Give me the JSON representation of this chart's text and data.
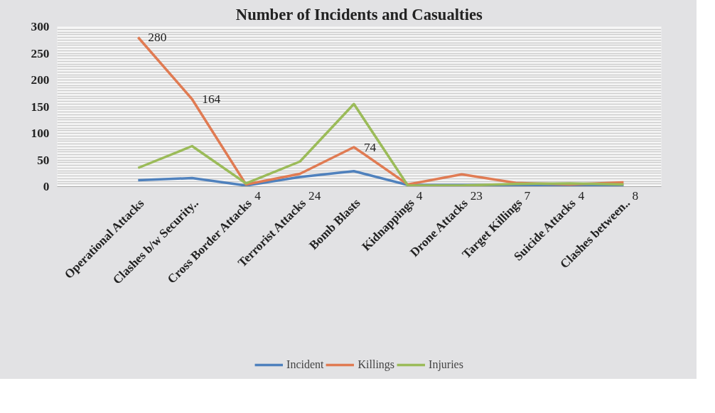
{
  "chart_data": {
    "type": "line",
    "title": "Number of Incidents and Casualties",
    "categories": [
      "Operational Attacks",
      "Clashes b/w Security..",
      "Cross Border Attacks",
      "Terrorist Attacks",
      "Bomb Blasts",
      "Kidnappings",
      "Drone Attacks",
      "Target Killings",
      "Suicide Attacks",
      "Clashes between.."
    ],
    "series": [
      {
        "name": "Incident",
        "color": "#4f81bd",
        "values": [
          12,
          16,
          2,
          18,
          29,
          3,
          3,
          3,
          2,
          2
        ]
      },
      {
        "name": "Killings",
        "color": "#e07b53",
        "values": [
          280,
          164,
          4,
          24,
          74,
          4,
          23,
          7,
          4,
          8
        ],
        "value_labels": [
          "280",
          "164",
          "4",
          "24",
          "74",
          "4",
          "23",
          "7",
          "4",
          "8"
        ]
      },
      {
        "name": "Injuries",
        "color": "#9bbb59",
        "values": [
          35,
          76,
          6,
          47,
          155,
          2,
          2,
          5,
          6,
          4
        ]
      }
    ],
    "ylim": [
      0,
      300
    ],
    "yticks": [
      0,
      50,
      100,
      150,
      200,
      250,
      300
    ],
    "grid": "y",
    "legend": "bottom",
    "marker": "none",
    "line_style": "solid"
  }
}
